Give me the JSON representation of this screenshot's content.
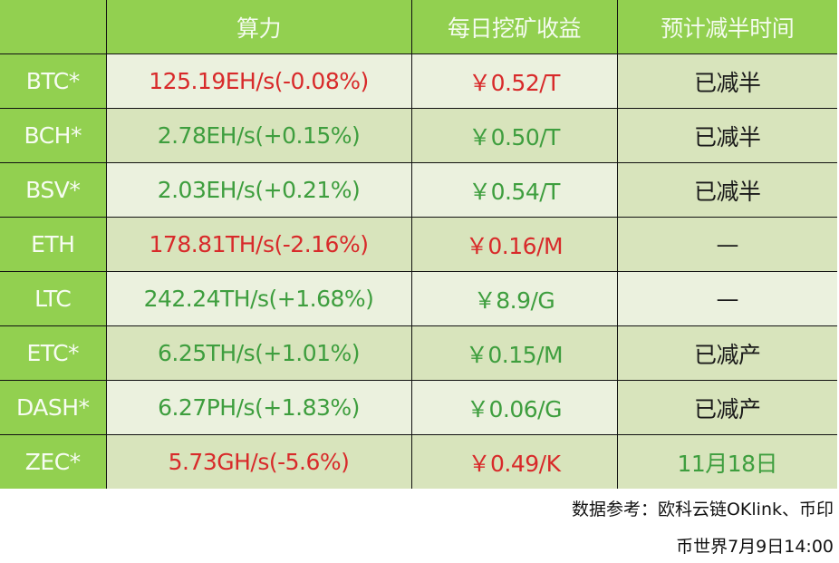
{
  "colors": {
    "header_bg": "#92d050",
    "row_light": "#ebf1de",
    "row_dark": "#d8e4bc",
    "up_text": "#3e9e3e",
    "down_text": "#d82a2a",
    "border": "#111111"
  },
  "table": {
    "headers": [
      "",
      "算力",
      "每日挖矿收益",
      "预计减半时间"
    ],
    "rows": [
      {
        "coin": "BTC*",
        "hashrate": "125.19EH/s(-0.08%)",
        "hashrate_trend": "down",
        "income": "￥0.52/T",
        "income_trend": "down",
        "halving": "已减半",
        "halving_style": "neutral"
      },
      {
        "coin": "BCH*",
        "hashrate": "2.78EH/s(+0.15%)",
        "hashrate_trend": "up",
        "income": "￥0.50/T",
        "income_trend": "up",
        "halving": "已减半",
        "halving_style": "neutral"
      },
      {
        "coin": "BSV*",
        "hashrate": "2.03EH/s(+0.21%)",
        "hashrate_trend": "up",
        "income": "￥0.54/T",
        "income_trend": "up",
        "halving": "已减半",
        "halving_style": "neutral"
      },
      {
        "coin": "ETH",
        "hashrate": "178.81TH/s(-2.16%)",
        "hashrate_trend": "down",
        "income": "￥0.16/M",
        "income_trend": "down",
        "halving": "—",
        "halving_style": "neutral"
      },
      {
        "coin": "LTC",
        "hashrate": "242.24TH/s(+1.68%)",
        "hashrate_trend": "up",
        "income": "￥8.9/G",
        "income_trend": "up",
        "halving": "—",
        "halving_style": "neutral"
      },
      {
        "coin": "ETC*",
        "hashrate": "6.25TH/s(+1.01%)",
        "hashrate_trend": "up",
        "income": "￥0.15/M",
        "income_trend": "up",
        "halving": "已减产",
        "halving_style": "neutral"
      },
      {
        "coin": "DASH*",
        "hashrate": "6.27PH/s(+1.83%)",
        "hashrate_trend": "up",
        "income": "￥0.06/G",
        "income_trend": "up",
        "halving": "已减产",
        "halving_style": "neutral"
      },
      {
        "coin": "ZEC*",
        "hashrate": "5.73GH/s(-5.6%)",
        "hashrate_trend": "down",
        "income": "￥0.49/K",
        "income_trend": "down",
        "halving": "11月18日",
        "halving_style": "up"
      }
    ]
  },
  "footer": {
    "source": "数据参考：欧科云链OKlink、币印",
    "credit": "币世界7月9日14:00"
  }
}
